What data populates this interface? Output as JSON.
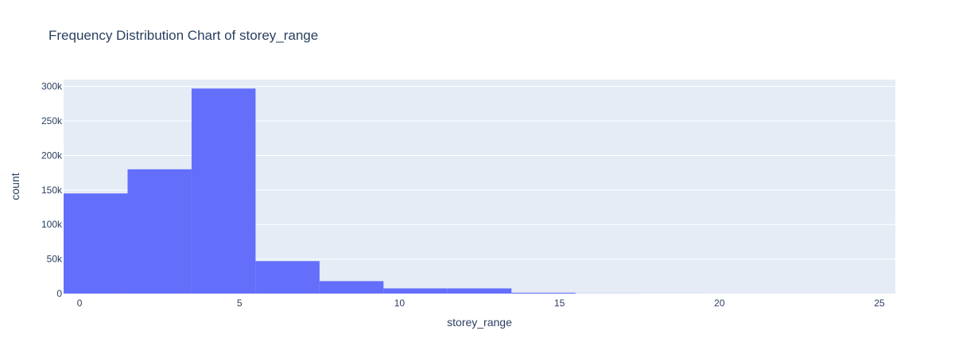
{
  "chart_data": {
    "type": "bar",
    "title": "Frequency Distribution Chart of storey_range",
    "xlabel": "storey_range",
    "ylabel": "count",
    "xlim": [
      -0.5,
      25.5
    ],
    "ylim": [
      0,
      310000
    ],
    "x_ticks": [
      {
        "value": 0,
        "label": "0"
      },
      {
        "value": 5,
        "label": "5"
      },
      {
        "value": 10,
        "label": "10"
      },
      {
        "value": 15,
        "label": "15"
      },
      {
        "value": 20,
        "label": "20"
      },
      {
        "value": 25,
        "label": "25"
      }
    ],
    "y_ticks": [
      {
        "value": 0,
        "label": "0"
      },
      {
        "value": 50000,
        "label": "50k"
      },
      {
        "value": 100000,
        "label": "100k"
      },
      {
        "value": 150000,
        "label": "150k"
      },
      {
        "value": 200000,
        "label": "200k"
      },
      {
        "value": 250000,
        "label": "250k"
      },
      {
        "value": 300000,
        "label": "300k"
      }
    ],
    "bins": [
      {
        "start": -0.5,
        "end": 1.5,
        "count": 145000
      },
      {
        "start": 1.5,
        "end": 3.5,
        "count": 180000
      },
      {
        "start": 3.5,
        "end": 5.5,
        "count": 297000
      },
      {
        "start": 5.5,
        "end": 7.5,
        "count": 47000
      },
      {
        "start": 7.5,
        "end": 9.5,
        "count": 18000
      },
      {
        "start": 9.5,
        "end": 11.5,
        "count": 7500
      },
      {
        "start": 11.5,
        "end": 13.5,
        "count": 7500
      },
      {
        "start": 13.5,
        "end": 15.5,
        "count": 1200
      },
      {
        "start": 15.5,
        "end": 17.5,
        "count": 150
      },
      {
        "start": 17.5,
        "end": 19.5,
        "count": 60
      },
      {
        "start": 19.5,
        "end": 21.5,
        "count": 30
      },
      {
        "start": 21.5,
        "end": 23.5,
        "count": 15
      },
      {
        "start": 23.5,
        "end": 25.5,
        "count": 10
      }
    ],
    "grid": true,
    "legend": "none",
    "colors": {
      "bar": "#636efa",
      "plot_bg": "#e5ecf6",
      "grid": "#ffffff",
      "text": "#2a3f5f"
    }
  }
}
